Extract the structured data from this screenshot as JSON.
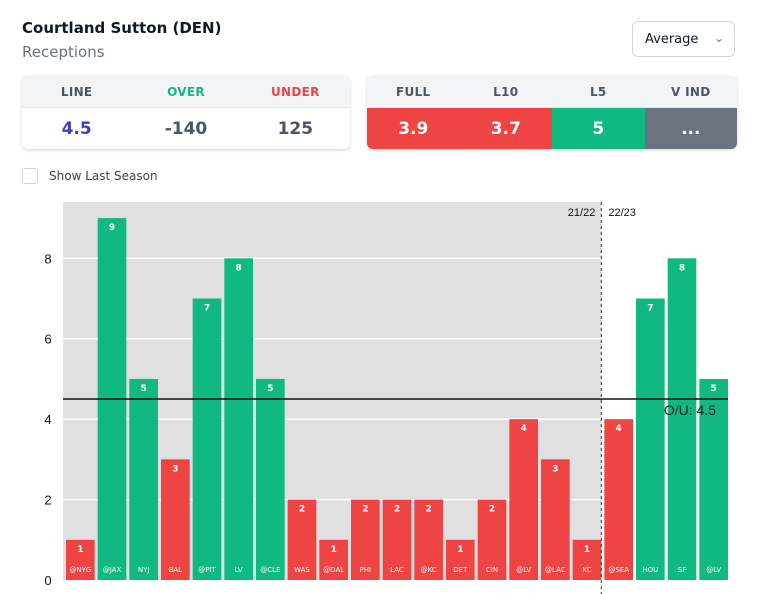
{
  "header": {
    "title": "Courtland Sutton (DEN)",
    "subtitle": "Receptions",
    "dropdown": "Average"
  },
  "odds": {
    "headers": [
      "LINE",
      "OVER",
      "UNDER"
    ],
    "values": [
      "4.5",
      "-140",
      "125"
    ],
    "header_colors": [
      "#4b5563",
      "#10b981",
      "#ef4444"
    ],
    "value_colors": [
      "#3b3fc4",
      "#4b5563",
      "#4b5563"
    ]
  },
  "averages": {
    "headers": [
      "FULL",
      "L10",
      "L5",
      "V IND"
    ],
    "values": [
      "3.9",
      "3.7",
      "5",
      "..."
    ],
    "colors": [
      "#ef4444",
      "#ef4444",
      "#10b981",
      "#6b7280"
    ]
  },
  "toggle": {
    "label": "Show Last Season",
    "checked": false
  },
  "chart_data": {
    "type": "bar",
    "categories": [
      "@NYG",
      "@JAX",
      "NYJ",
      "BAL",
      "@PIT",
      "LV",
      "@CLE",
      "WAS",
      "@DAL",
      "PHI",
      "LAC",
      "@KC",
      "DET",
      "CIN",
      "@LV",
      "@LAC",
      "KC",
      "@SEA",
      "HOU",
      "SF",
      "@LV"
    ],
    "values": [
      1,
      9,
      5,
      3,
      7,
      8,
      5,
      2,
      1,
      2,
      2,
      2,
      1,
      2,
      4,
      3,
      1,
      4,
      7,
      8,
      5
    ],
    "ylim": [
      0,
      9.4
    ],
    "yticks": [
      0,
      2,
      4,
      6,
      8
    ],
    "line": {
      "value": 4.5,
      "label": "O/U: 4.5"
    },
    "seasons": [
      {
        "label": "21/22",
        "games": 17
      },
      {
        "label": "22/23",
        "games": 4
      }
    ],
    "colors": {
      "over": "#10b981",
      "under": "#ef4444",
      "past_season_bg": "#e0e0e0"
    },
    "grid": true
  }
}
